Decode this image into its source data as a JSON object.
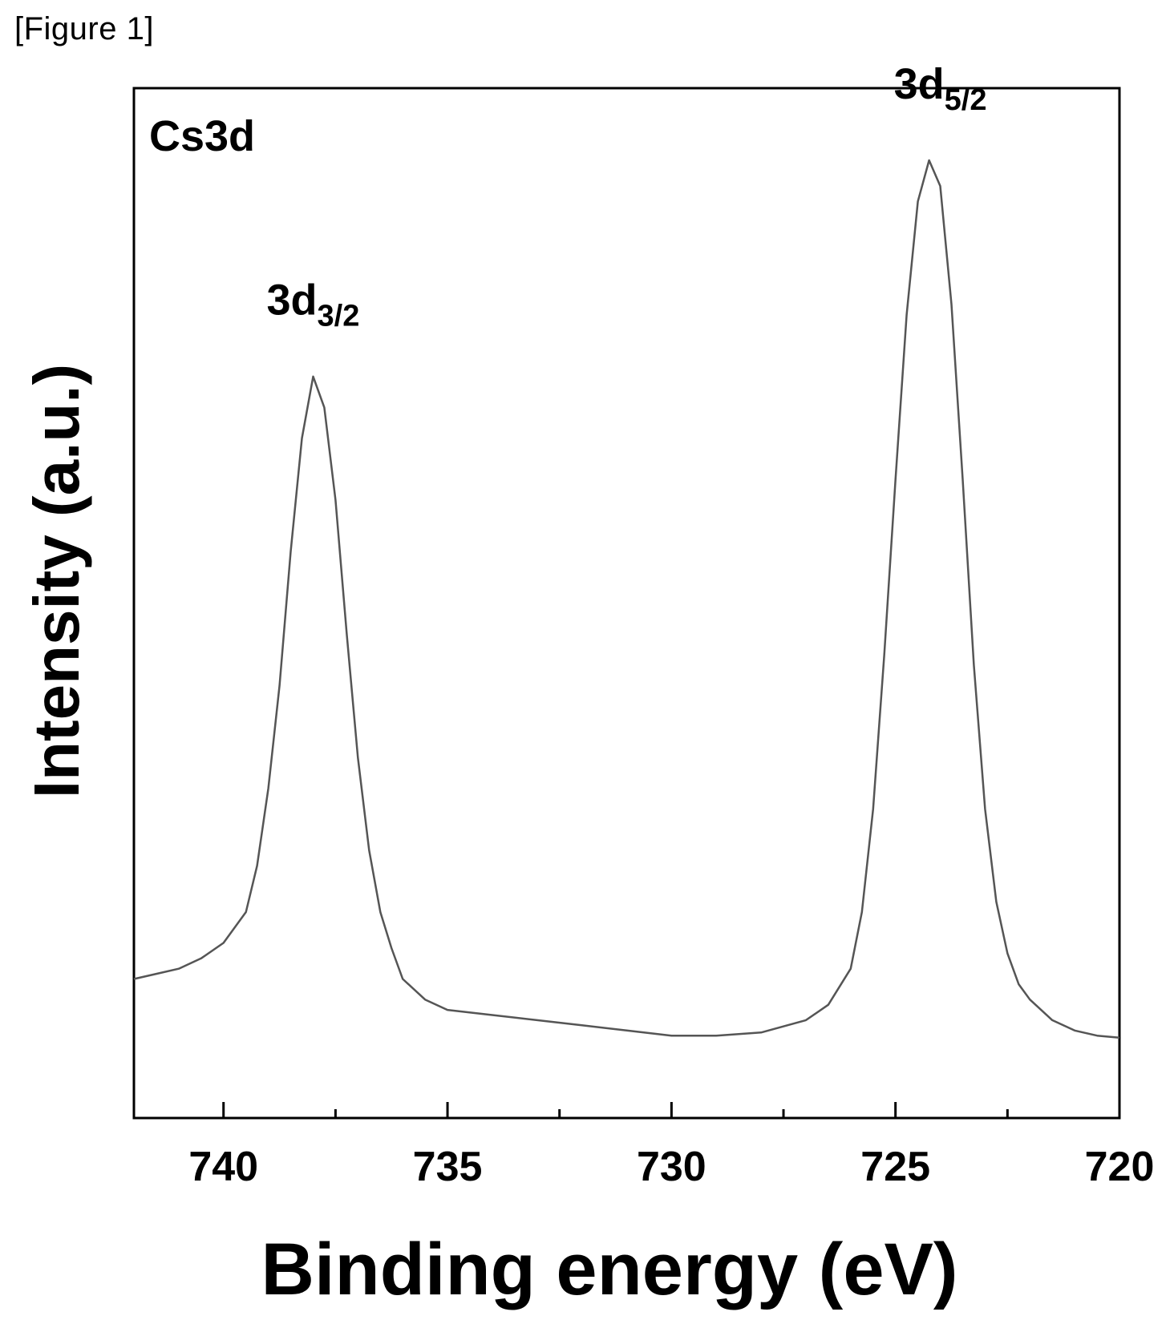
{
  "figure_caption": "[Figure 1]",
  "chart_data": {
    "type": "line",
    "title": "",
    "panel_label": "Cs3d",
    "xlabel": "Binding energy (eV)",
    "ylabel": "Intensity (a.u.)",
    "xlim": [
      742,
      720
    ],
    "x_reversed": true,
    "ylim": [
      0,
      1
    ],
    "y_ticks_shown": false,
    "grid": false,
    "x_ticks": [
      740,
      735,
      730,
      725,
      720
    ],
    "x_tick_labels": [
      "740",
      "735",
      "730",
      "725",
      "720"
    ],
    "x_minor_ticks": [
      737.5,
      732.5,
      727.5,
      722.5
    ],
    "annotations": [
      {
        "main": "3d",
        "sub": "3/2",
        "x": 738.0,
        "y": 0.78
      },
      {
        "main": "3d",
        "sub": "5/2",
        "x": 724.0,
        "y": 0.99
      }
    ],
    "series": [
      {
        "x": [
          742.0,
          741.5,
          741.0,
          740.5,
          740.0,
          739.5,
          739.25,
          739.0,
          738.75,
          738.5,
          738.25,
          738.0,
          737.75,
          737.5,
          737.25,
          737.0,
          736.75,
          736.5,
          736.25,
          736.0,
          735.5,
          735.0,
          734.0,
          733.0,
          732.0,
          731.0,
          730.0,
          729.0,
          728.0,
          727.0,
          726.5,
          726.0,
          725.75,
          725.5,
          725.25,
          725.0,
          724.75,
          724.5,
          724.25,
          724.0,
          723.75,
          723.5,
          723.25,
          723.0,
          722.75,
          722.5,
          722.25,
          722.0,
          721.5,
          721.0,
          720.5,
          720.0
        ],
        "y": [
          0.135,
          0.14,
          0.145,
          0.155,
          0.17,
          0.2,
          0.245,
          0.32,
          0.42,
          0.55,
          0.66,
          0.72,
          0.69,
          0.6,
          0.47,
          0.35,
          0.26,
          0.2,
          0.165,
          0.135,
          0.115,
          0.105,
          0.1,
          0.095,
          0.09,
          0.085,
          0.08,
          0.08,
          0.083,
          0.095,
          0.11,
          0.145,
          0.2,
          0.3,
          0.45,
          0.62,
          0.78,
          0.89,
          0.93,
          0.905,
          0.79,
          0.62,
          0.44,
          0.3,
          0.21,
          0.16,
          0.13,
          0.115,
          0.095,
          0.085,
          0.08,
          0.078
        ]
      }
    ]
  }
}
